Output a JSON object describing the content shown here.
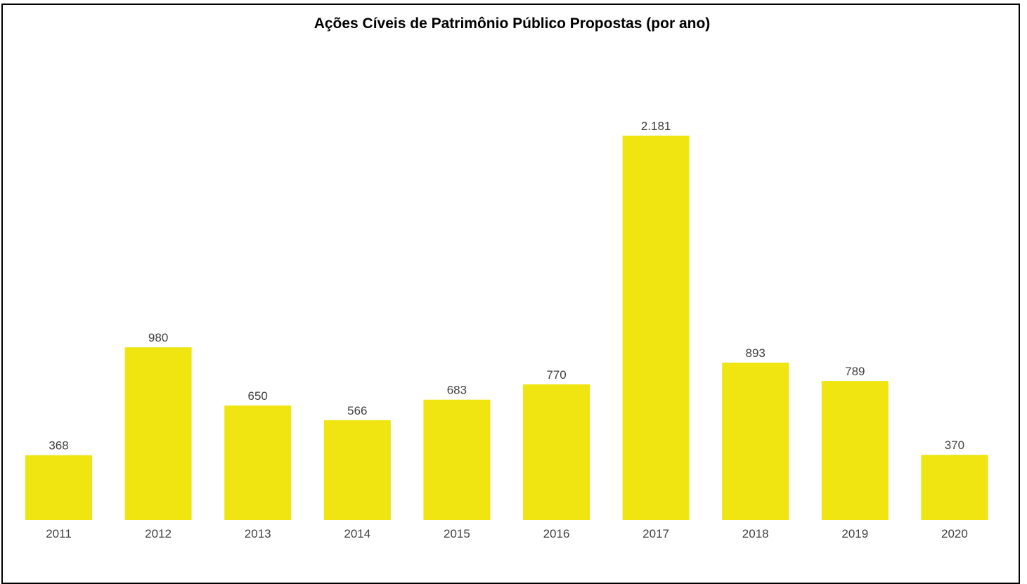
{
  "chart_data": {
    "type": "bar",
    "title": "Ações Cíveis de Patrimônio Público Propostas (por ano)",
    "categories": [
      "2011",
      "2012",
      "2013",
      "2014",
      "2015",
      "2016",
      "2017",
      "2018",
      "2019",
      "2020"
    ],
    "values": [
      368,
      980,
      650,
      566,
      683,
      770,
      2181,
      893,
      789,
      370
    ],
    "value_labels": [
      "368",
      "980",
      "650",
      "566",
      "683",
      "770",
      "2.181",
      "893",
      "789",
      "370"
    ],
    "xlabel": "",
    "ylabel": "",
    "ylim": [
      0,
      2181
    ],
    "grid": false,
    "legend": "none",
    "colors": {
      "bar": "#f0e511",
      "text": "#404040",
      "frame": "#000000"
    }
  }
}
